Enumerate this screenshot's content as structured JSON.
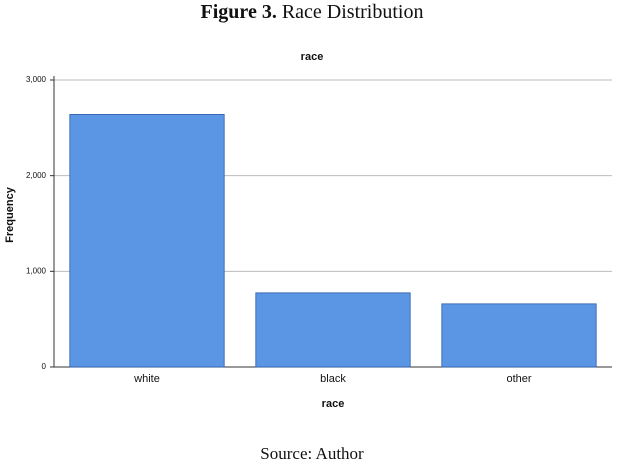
{
  "chart_data": {
    "type": "bar",
    "figure_label": "Figure 3.",
    "caption": "Race Distribution",
    "title": "race",
    "x_label": "race",
    "y_label": "Frequency",
    "source": "Source: Author",
    "categories": [
      "white",
      "black",
      "other"
    ],
    "values": [
      2640,
      775,
      660
    ],
    "color": "#5b96e4",
    "ylim": [
      0,
      3000
    ],
    "yticks": [
      0,
      {
        "value": 1000,
        "label": "1,000"
      },
      {
        "value": 2000,
        "label": "2,000"
      },
      {
        "value": 3000,
        "label": "3,000"
      }
    ],
    "grid": true
  }
}
